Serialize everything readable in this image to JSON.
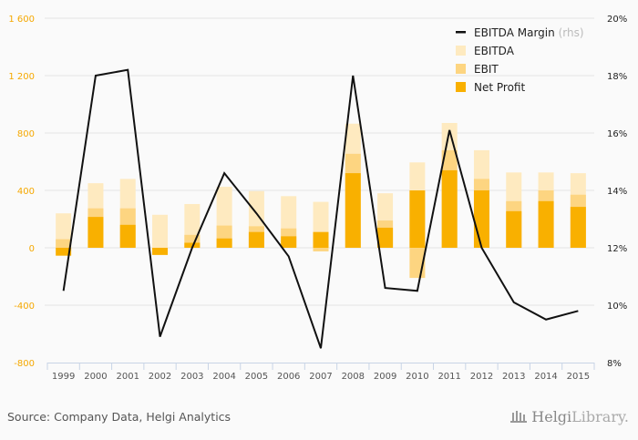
{
  "chart_data": {
    "type": "bar",
    "title": "",
    "xlabel": "",
    "ylabel": "",
    "categories": [
      "1999",
      "2000",
      "2001",
      "2002",
      "2003",
      "2004",
      "2005",
      "2006",
      "2007",
      "2008",
      "2009",
      "2010",
      "2011",
      "2012",
      "2013",
      "2014",
      "2015"
    ],
    "ylim": [
      -800,
      1600
    ],
    "yticks": [
      -800,
      -400,
      0,
      400,
      800,
      1200,
      1600
    ],
    "ytick_labels": [
      "-800",
      "-400",
      "0",
      "400",
      "800",
      "1 200",
      "1 600"
    ],
    "y2lim": [
      8,
      20
    ],
    "y2ticks": [
      8,
      10,
      12,
      14,
      16,
      18,
      20
    ],
    "y2tick_labels": [
      "8%",
      "10%",
      "12%",
      "14%",
      "16%",
      "18%",
      "20%"
    ],
    "grid": true,
    "legend_position": "top-right",
    "series": [
      {
        "name": "EBITDA",
        "type": "bar",
        "axis": "left",
        "color": "#feeac0",
        "values": [
          240,
          450,
          480,
          230,
          305,
          425,
          395,
          360,
          320,
          865,
          380,
          595,
          870,
          680,
          525,
          525,
          520
        ]
      },
      {
        "name": "EBIT",
        "type": "bar",
        "axis": "left",
        "color": "#fdd581",
        "values": [
          60,
          275,
          275,
          0,
          90,
          155,
          150,
          135,
          -25,
          655,
          190,
          -210,
          680,
          480,
          325,
          400,
          370
        ]
      },
      {
        "name": "Net Profit",
        "type": "bar",
        "axis": "left",
        "color": "#f9b000",
        "values": [
          -55,
          215,
          160,
          -50,
          35,
          65,
          110,
          80,
          110,
          520,
          140,
          400,
          540,
          400,
          255,
          325,
          285
        ]
      },
      {
        "name": "EBITDA Margin",
        "suffix": "(rhs)",
        "type": "line",
        "axis": "right",
        "color": "#111111",
        "values": [
          10.5,
          18.0,
          18.2,
          8.9,
          12.0,
          14.6,
          13.2,
          11.7,
          8.5,
          18.0,
          10.6,
          10.5,
          16.1,
          12.0,
          10.1,
          9.5,
          9.8
        ]
      }
    ]
  },
  "legend": {
    "line_label": "EBITDA Margin",
    "line_suffix": "(rhs)",
    "ebitda_label": "EBITDA",
    "ebit_label": "EBIT",
    "net_label": "Net Profit"
  },
  "footer": {
    "source": "Source: Company Data, Helgi Analytics",
    "brand_bold": "Helgi",
    "brand_light": "Library."
  }
}
